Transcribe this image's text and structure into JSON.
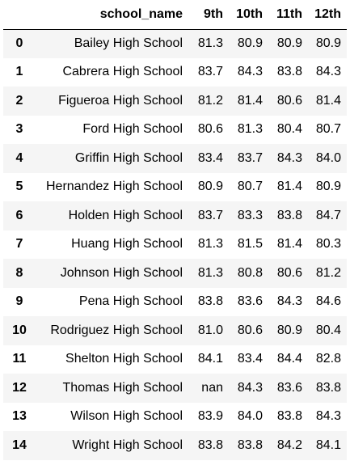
{
  "table": {
    "columns": [
      "",
      "school_name",
      "9th",
      "10th",
      "11th",
      "12th"
    ],
    "rows": [
      {
        "index": "0",
        "school_name": "Bailey High School",
        "g9": "81.3",
        "g10": "80.9",
        "g11": "80.9",
        "g12": "80.9"
      },
      {
        "index": "1",
        "school_name": "Cabrera High School",
        "g9": "83.7",
        "g10": "84.3",
        "g11": "83.8",
        "g12": "84.3"
      },
      {
        "index": "2",
        "school_name": "Figueroa High School",
        "g9": "81.2",
        "g10": "81.4",
        "g11": "80.6",
        "g12": "81.4"
      },
      {
        "index": "3",
        "school_name": "Ford High School",
        "g9": "80.6",
        "g10": "81.3",
        "g11": "80.4",
        "g12": "80.7"
      },
      {
        "index": "4",
        "school_name": "Griffin High School",
        "g9": "83.4",
        "g10": "83.7",
        "g11": "84.3",
        "g12": "84.0"
      },
      {
        "index": "5",
        "school_name": "Hernandez High School",
        "g9": "80.9",
        "g10": "80.7",
        "g11": "81.4",
        "g12": "80.9"
      },
      {
        "index": "6",
        "school_name": "Holden High School",
        "g9": "83.7",
        "g10": "83.3",
        "g11": "83.8",
        "g12": "84.7"
      },
      {
        "index": "7",
        "school_name": "Huang High School",
        "g9": "81.3",
        "g10": "81.5",
        "g11": "81.4",
        "g12": "80.3"
      },
      {
        "index": "8",
        "school_name": "Johnson High School",
        "g9": "81.3",
        "g10": "80.8",
        "g11": "80.6",
        "g12": "81.2"
      },
      {
        "index": "9",
        "school_name": "Pena High School",
        "g9": "83.8",
        "g10": "83.6",
        "g11": "84.3",
        "g12": "84.6"
      },
      {
        "index": "10",
        "school_name": "Rodriguez High School",
        "g9": "81.0",
        "g10": "80.6",
        "g11": "80.9",
        "g12": "80.4"
      },
      {
        "index": "11",
        "school_name": "Shelton High School",
        "g9": "84.1",
        "g10": "83.4",
        "g11": "84.4",
        "g12": "82.8"
      },
      {
        "index": "12",
        "school_name": "Thomas High School",
        "g9": "nan",
        "g10": "84.3",
        "g11": "83.6",
        "g12": "83.8"
      },
      {
        "index": "13",
        "school_name": "Wilson High School",
        "g9": "83.9",
        "g10": "84.0",
        "g11": "83.8",
        "g12": "84.3"
      },
      {
        "index": "14",
        "school_name": "Wright High School",
        "g9": "83.8",
        "g10": "83.8",
        "g11": "84.2",
        "g12": "84.1"
      }
    ]
  }
}
